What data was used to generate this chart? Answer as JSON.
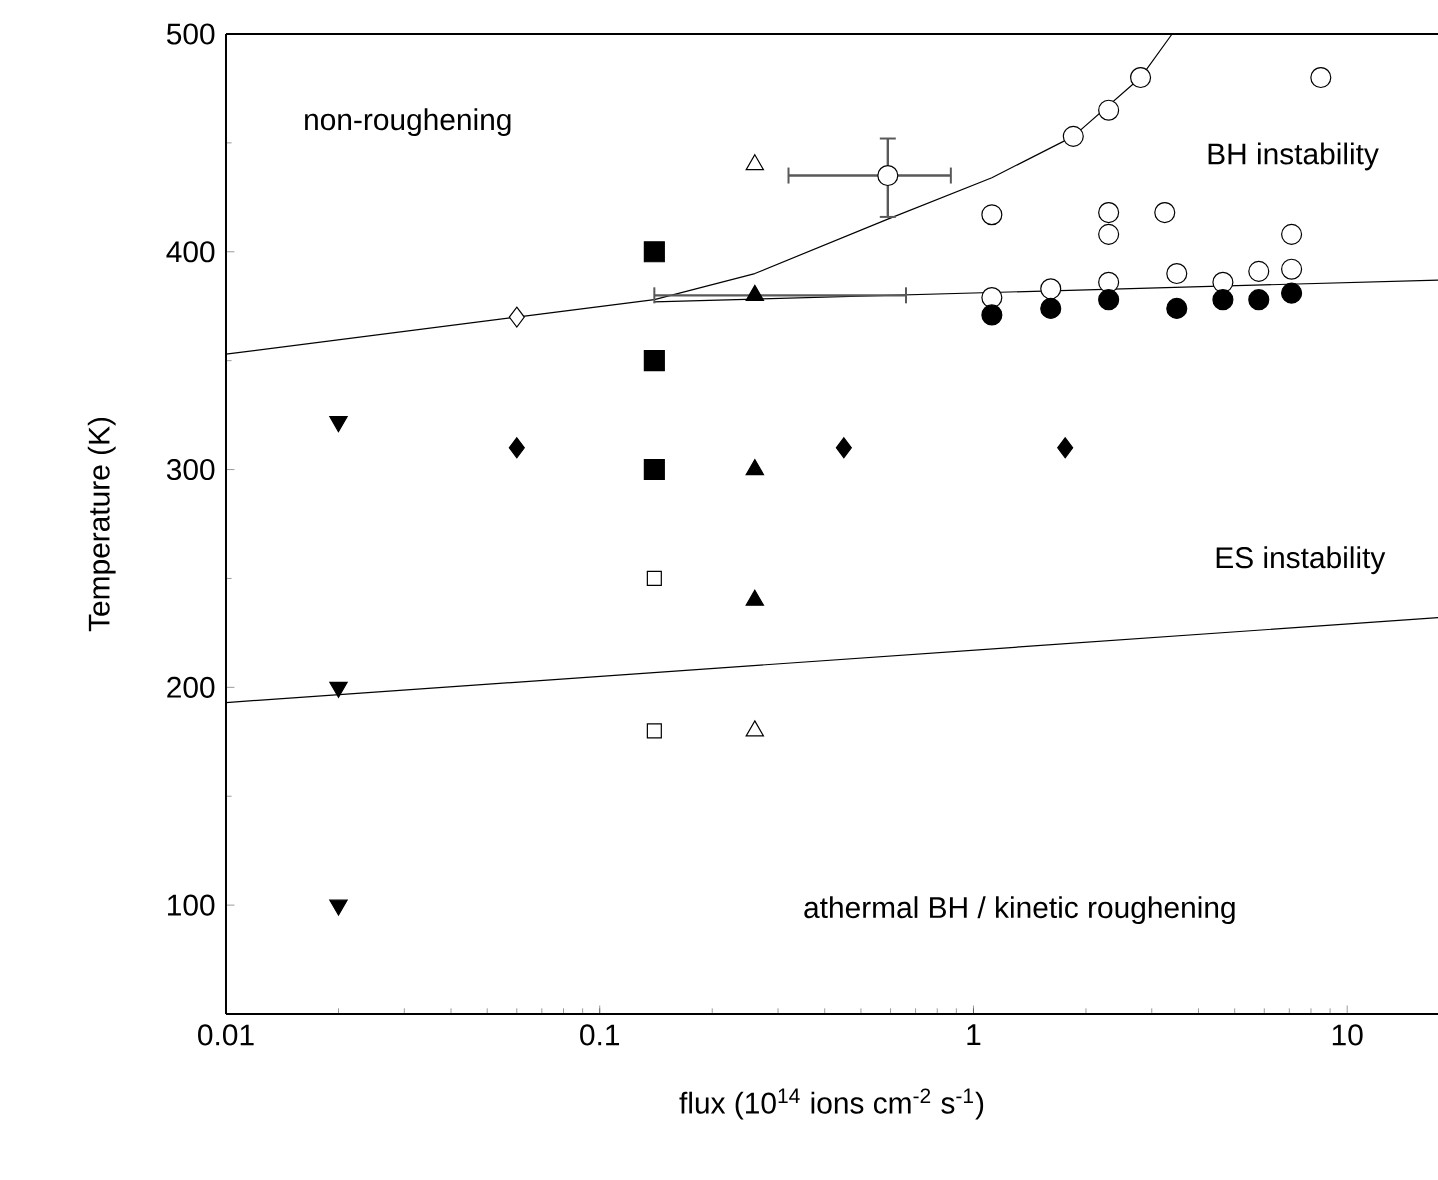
{
  "chart_data": {
    "type": "scatter",
    "xlabel": "flux (10$^{14}$ ions cm$^{-2}$ s$^{-1}$)",
    "ylabel": "Temperature (K)",
    "log": "x",
    "xlim": [
      0.01,
      17.5
    ],
    "ylim": [
      50,
      500
    ],
    "xticks": [
      0.01,
      0.1,
      1,
      10
    ],
    "yticks": [
      100,
      200,
      300,
      400,
      500
    ],
    "annotations": [
      "non-roughening",
      "BH instability",
      "ES instability",
      "athermal BH / kinetic roughening"
    ],
    "series": [
      {
        "type": "line",
        "color": "#000000",
        "marker": "none",
        "x": [
          0.01,
          0.06,
          0.14,
          0.26,
          0.59,
          1.12,
          1.85,
          2.8,
          3.4
        ],
        "values": [
          353,
          370,
          378,
          390,
          415,
          434,
          453,
          480,
          500
        ]
      },
      {
        "type": "line",
        "color": "#000000",
        "marker": "none",
        "x": [
          0.14,
          17.5
        ],
        "values": [
          377,
          387
        ]
      },
      {
        "type": "line",
        "color": "#000000",
        "marker": "none",
        "x": [
          0.01,
          17.5
        ],
        "values": [
          193,
          232
        ]
      },
      {
        "color": "#000000",
        "marker": "triangle down",
        "x": [
          0.02,
          0.02,
          0.02
        ],
        "values": [
          322,
          200,
          100
        ]
      },
      {
        "color": "#000000",
        "marker": "diamond",
        "x": [
          0.06,
          0.45,
          1.76
        ],
        "values": [
          310,
          310,
          310
        ]
      },
      {
        "color": "#ffffff",
        "marker": "diamond",
        "x": [
          0.06
        ],
        "values": [
          370
        ]
      },
      {
        "color": "#000000",
        "marker": "square",
        "x": [
          0.14,
          0.14,
          0.14
        ],
        "values": [
          400,
          350,
          300
        ]
      },
      {
        "color": "#ffffff",
        "marker": "square",
        "x": [
          0.14,
          0.14
        ],
        "values": [
          250,
          180
        ]
      },
      {
        "color": "#000000",
        "marker": "triangle",
        "x": [
          0.26,
          0.26,
          0.26
        ],
        "values": [
          380,
          300,
          240
        ],
        "xerrors": [
          [
            0.14,
            0.66
          ],
          null,
          null
        ]
      },
      {
        "color": "#ffffff",
        "marker": "triangle",
        "x": [
          0.26,
          0.26
        ],
        "values": [
          440,
          180
        ]
      },
      {
        "color": "#ffffff",
        "marker": "circle",
        "x": [
          0.59
        ],
        "values": [
          435
        ],
        "errors": [
          [
            416,
            452
          ]
        ],
        "xerrors": [
          [
            0.32,
            0.87
          ]
        ]
      },
      {
        "color": "#ffffff",
        "marker": "circle",
        "x": [
          1.85,
          2.3,
          2.8,
          8.5,
          1.12,
          2.3,
          2.3,
          3.25,
          7.1,
          1.12,
          1.61,
          2.3,
          3.5,
          4.65,
          5.8,
          7.1
        ],
        "values": [
          453,
          465,
          480,
          480,
          417,
          418,
          408,
          418,
          408,
          379,
          383,
          386,
          390,
          386,
          391,
          392
        ]
      },
      {
        "color": "#000000",
        "marker": "circle",
        "x": [
          1.12,
          1.61,
          2.3,
          3.5,
          4.65,
          5.8,
          7.1
        ],
        "values": [
          371,
          374,
          378,
          374,
          378,
          378,
          381
        ]
      }
    ]
  }
}
